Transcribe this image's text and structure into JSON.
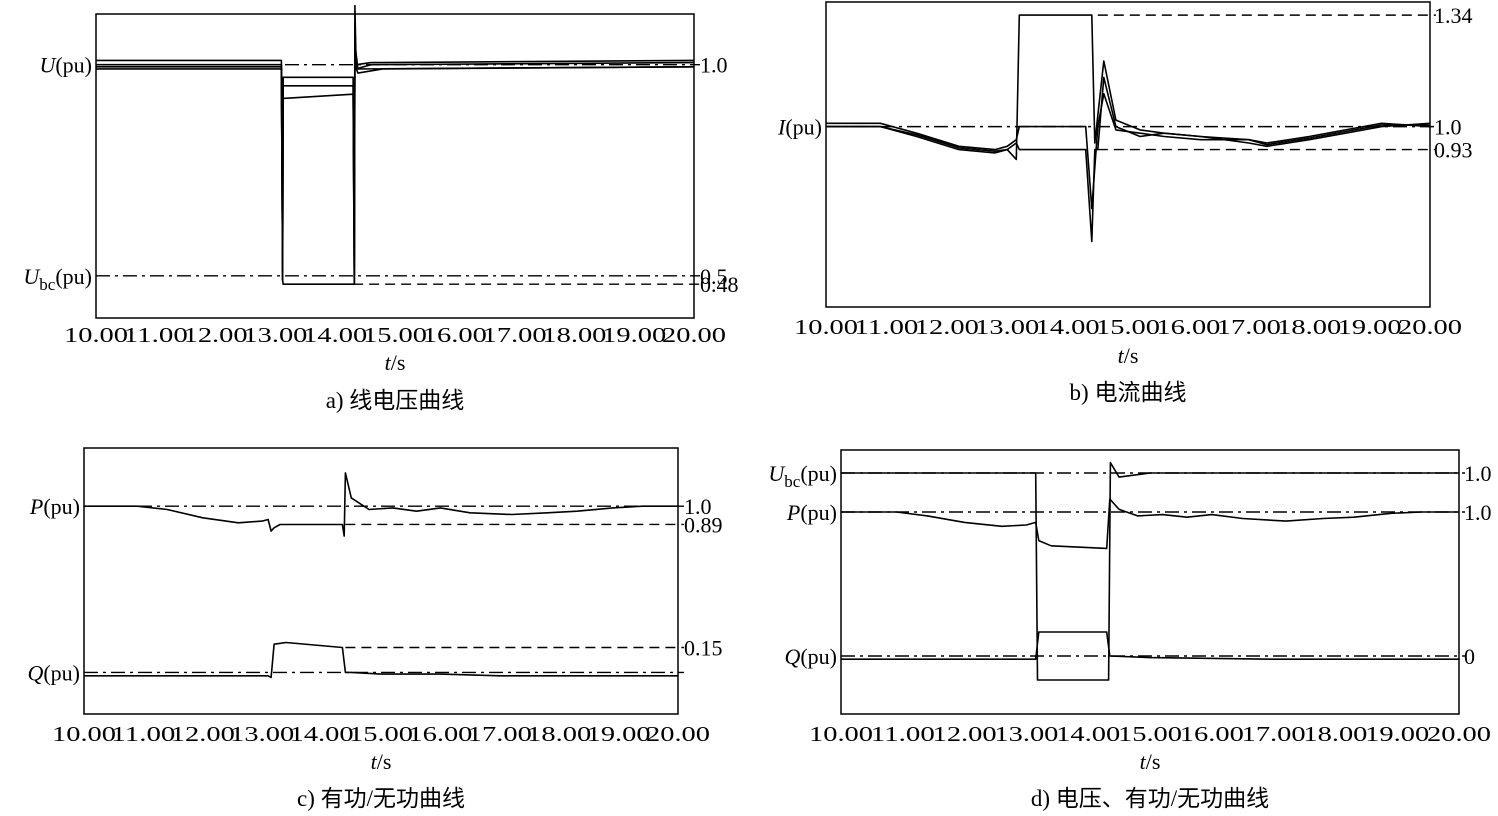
{
  "chart_data": [
    {
      "id": "a",
      "type": "line",
      "title": "a) 线电压曲线",
      "xlabel_var": "t",
      "xlabel_unit": "/s",
      "xlim": [
        10,
        20
      ],
      "x_ticks": [
        "10.00",
        "11.00",
        "12.00",
        "13.00",
        "14.00",
        "15.00",
        "16.00",
        "17.00",
        "18.00",
        "19.00",
        "20.00"
      ],
      "left_labels": [
        {
          "var": "U",
          "sub": "",
          "unit": "(pu)",
          "value": 1.0
        },
        {
          "var": "U",
          "sub": "bc",
          "unit": "(pu)",
          "value": 0.5
        }
      ],
      "right_labels": [
        {
          "text": "1.0",
          "value": 1.0
        },
        {
          "text": "0.5",
          "value": 0.5
        },
        {
          "text": "0.48",
          "value": 0.48
        }
      ],
      "ylim": [
        0.4,
        1.12
      ],
      "reference_lines": [
        {
          "value": 1.0,
          "style": "dashdot",
          "from": 10.0
        },
        {
          "value": 0.5,
          "style": "dashdot",
          "from": 10.0
        },
        {
          "value": 0.48,
          "style": "dashed",
          "from": 14.3
        }
      ],
      "series": [
        {
          "points": [
            [
              10,
              1.01
            ],
            [
              13.1,
              1.01
            ],
            [
              13.12,
              0.52
            ],
            [
              13.13,
              0.97
            ],
            [
              14.3,
              0.97
            ],
            [
              14.32,
              0.5
            ],
            [
              14.33,
              1.14
            ],
            [
              14.35,
              1.0
            ],
            [
              14.6,
              1.005
            ],
            [
              20,
              1.01
            ]
          ]
        },
        {
          "points": [
            [
              10,
              1.0
            ],
            [
              13.1,
              1.0
            ],
            [
              13.12,
              0.49
            ],
            [
              13.13,
              0.95
            ],
            [
              14.3,
              0.95
            ],
            [
              14.32,
              0.48
            ],
            [
              14.33,
              1.1
            ],
            [
              14.35,
              0.99
            ],
            [
              14.6,
              1.0
            ],
            [
              20,
              1.005
            ]
          ]
        },
        {
          "points": [
            [
              10,
              0.99
            ],
            [
              13.1,
              0.99
            ],
            [
              13.12,
              0.49
            ],
            [
              13.13,
              0.92
            ],
            [
              14.3,
              0.93
            ],
            [
              14.32,
              0.48
            ],
            [
              14.33,
              1.05
            ],
            [
              14.38,
              0.99
            ],
            [
              20,
              0.995
            ]
          ]
        },
        {
          "points": [
            [
              10,
              0.995
            ],
            [
              13.1,
              0.995
            ],
            [
              13.12,
              0.49
            ],
            [
              13.13,
              0.48
            ],
            [
              14.3,
              0.48
            ],
            [
              14.32,
              0.48
            ],
            [
              14.33,
              1.0
            ],
            [
              14.38,
              0.98
            ],
            [
              14.8,
              0.99
            ],
            [
              20,
              0.995
            ]
          ]
        }
      ]
    },
    {
      "id": "b",
      "type": "line",
      "title": "b) 电流曲线",
      "xlabel_var": "t",
      "xlabel_unit": "/s",
      "xlim": [
        10,
        20
      ],
      "x_ticks": [
        "10.00",
        "11.00",
        "12.00",
        "13.00",
        "14.00",
        "15.00",
        "16.00",
        "17.00",
        "18.00",
        "19.00",
        "20.00"
      ],
      "left_labels": [
        {
          "var": "I",
          "sub": "",
          "unit": "(pu)",
          "value": 1.0
        }
      ],
      "right_labels": [
        {
          "text": "1.34",
          "value": 1.34
        },
        {
          "text": "1.0",
          "value": 1.0
        },
        {
          "text": "0.93",
          "value": 0.93
        }
      ],
      "ylim": [
        0.45,
        1.38
      ],
      "reference_lines": [
        {
          "value": 1.34,
          "style": "dashed",
          "from": 14.5
        },
        {
          "value": 1.0,
          "style": "dashdot",
          "from": 10.0
        },
        {
          "value": 0.93,
          "style": "dashed",
          "from": 14.5
        }
      ],
      "series": [
        {
          "points": [
            [
              10,
              1.0
            ],
            [
              10.9,
              1.0
            ],
            [
              11.5,
              0.97
            ],
            [
              12.2,
              0.93
            ],
            [
              12.8,
              0.92
            ],
            [
              13.0,
              0.93
            ],
            [
              13.15,
              0.95
            ],
            [
              13.2,
              0.93
            ],
            [
              14.3,
              0.93
            ],
            [
              14.4,
              0.65
            ],
            [
              14.45,
              0.93
            ],
            [
              14.5,
              0.93
            ],
            [
              14.6,
              1.15
            ],
            [
              14.8,
              1.0
            ],
            [
              15.2,
              0.97
            ],
            [
              15.6,
              0.98
            ],
            [
              16.2,
              0.97
            ],
            [
              17.0,
              0.95
            ],
            [
              17.3,
              0.94
            ],
            [
              18.0,
              0.96
            ],
            [
              18.6,
              0.98
            ],
            [
              19.2,
              1.0
            ],
            [
              20,
              1.01
            ]
          ]
        },
        {
          "points": [
            [
              10,
              1.01
            ],
            [
              10.9,
              1.01
            ],
            [
              11.5,
              0.98
            ],
            [
              12.2,
              0.94
            ],
            [
              12.8,
              0.93
            ],
            [
              13.0,
              0.94
            ],
            [
              13.15,
              0.96
            ],
            [
              13.2,
              1.0
            ],
            [
              14.3,
              1.0
            ],
            [
              14.4,
              0.75
            ],
            [
              14.5,
              1.0
            ],
            [
              14.6,
              1.1
            ],
            [
              14.8,
              0.99
            ],
            [
              15.2,
              0.98
            ],
            [
              15.6,
              0.97
            ],
            [
              16.2,
              0.96
            ],
            [
              17.0,
              0.96
            ],
            [
              17.3,
              0.95
            ],
            [
              18.0,
              0.97
            ],
            [
              18.6,
              0.99
            ],
            [
              19.2,
              1.01
            ],
            [
              20,
              1.0
            ]
          ]
        },
        {
          "points": [
            [
              10,
              1.0
            ],
            [
              10.9,
              1.0
            ],
            [
              11.5,
              0.975
            ],
            [
              12.2,
              0.935
            ],
            [
              12.8,
              0.925
            ],
            [
              13.0,
              0.93
            ],
            [
              13.15,
              0.9
            ],
            [
              13.2,
              1.34
            ],
            [
              14.3,
              1.34
            ],
            [
              14.4,
              1.34
            ],
            [
              14.45,
              0.95
            ],
            [
              14.6,
              1.2
            ],
            [
              14.8,
              1.02
            ],
            [
              15.2,
              0.99
            ],
            [
              15.6,
              0.98
            ],
            [
              16.2,
              0.97
            ],
            [
              17.0,
              0.96
            ],
            [
              17.3,
              0.945
            ],
            [
              18.0,
              0.965
            ],
            [
              18.6,
              0.985
            ],
            [
              19.2,
              1.005
            ],
            [
              20,
              1.005
            ]
          ]
        }
      ]
    },
    {
      "id": "c",
      "type": "line",
      "title": "c) 有功/无功曲线",
      "xlabel_var": "t",
      "xlabel_unit": "/s",
      "xlim": [
        10,
        20
      ],
      "x_ticks": [
        "10.00",
        "11.00",
        "12.00",
        "13.00",
        "14.00",
        "15.00",
        "16.00",
        "17.00",
        "18.00",
        "19.00",
        "20.00"
      ],
      "left_labels": [
        {
          "var": "P",
          "sub": "",
          "unit": "(pu)",
          "value": 1.0
        },
        {
          "var": "Q",
          "sub": "",
          "unit": "(pu)",
          "value": 0.0
        }
      ],
      "right_labels": [
        {
          "text": "1.0",
          "value": 1.0
        },
        {
          "text": "0.89",
          "value": 0.89
        },
        {
          "text": "0.15",
          "value": 0.15
        }
      ],
      "ylim": [
        -0.25,
        1.35
      ],
      "reference_lines": [
        {
          "value": 1.0,
          "style": "dashdot",
          "from": 10.0
        },
        {
          "value": 0.89,
          "style": "dashed",
          "from": 14.4
        },
        {
          "value": 0.15,
          "style": "dashed",
          "from": 14.4
        },
        {
          "value": 0.0,
          "style": "dashdot",
          "from": 10.0
        }
      ],
      "series": [
        {
          "name": "P",
          "points": [
            [
              10,
              1.0
            ],
            [
              10.9,
              1.0
            ],
            [
              11.4,
              0.98
            ],
            [
              12.0,
              0.93
            ],
            [
              12.6,
              0.9
            ],
            [
              13.0,
              0.91
            ],
            [
              13.1,
              0.92
            ],
            [
              13.15,
              0.85
            ],
            [
              13.2,
              0.87
            ],
            [
              13.3,
              0.89
            ],
            [
              14.35,
              0.89
            ],
            [
              14.38,
              0.82
            ],
            [
              14.4,
              1.2
            ],
            [
              14.5,
              1.05
            ],
            [
              14.8,
              0.98
            ],
            [
              15.2,
              0.99
            ],
            [
              15.6,
              0.97
            ],
            [
              16.0,
              0.99
            ],
            [
              16.5,
              0.96
            ],
            [
              17.2,
              0.95
            ],
            [
              17.8,
              0.96
            ],
            [
              18.3,
              0.97
            ],
            [
              18.9,
              0.99
            ],
            [
              19.4,
              1.0
            ],
            [
              20,
              1.0
            ]
          ]
        },
        {
          "name": "Q",
          "points": [
            [
              10,
              -0.02
            ],
            [
              13.1,
              -0.02
            ],
            [
              13.15,
              -0.03
            ],
            [
              13.2,
              0.17
            ],
            [
              13.4,
              0.18
            ],
            [
              14.35,
              0.15
            ],
            [
              14.4,
              0.0
            ],
            [
              14.5,
              0.0
            ],
            [
              15.0,
              -0.01
            ],
            [
              16.0,
              -0.01
            ],
            [
              17.0,
              -0.02
            ],
            [
              18.0,
              -0.02
            ],
            [
              19.0,
              -0.02
            ],
            [
              20,
              -0.02
            ]
          ]
        }
      ]
    },
    {
      "id": "d",
      "type": "line",
      "title": "d) 电压、有功/无功曲线",
      "xlabel_var": "t",
      "xlabel_unit": "/s",
      "xlim": [
        10,
        20
      ],
      "x_ticks": [
        "10.00",
        "11.00",
        "12.00",
        "13.00",
        "14.00",
        "15.00",
        "16.00",
        "17.00",
        "18.00",
        "19.00",
        "20.00"
      ],
      "left_labels": [
        {
          "var": "U",
          "sub": "bc",
          "unit": "(pu)",
          "value": 1.0,
          "row": 0
        },
        {
          "var": "P",
          "sub": "",
          "unit": "(pu)",
          "value": 1.0,
          "row": 1
        },
        {
          "var": "Q",
          "sub": "",
          "unit": "(pu)",
          "value": 0.0,
          "row": 2
        }
      ],
      "right_labels": [
        {
          "text": "1.0",
          "row": 0
        },
        {
          "text": "1.0",
          "row": 1
        },
        {
          "text": "0",
          "row": 2
        }
      ],
      "series": [
        {
          "name": "Ubc",
          "points": [
            [
              10,
              1.0
            ],
            [
              13.15,
              1.0
            ],
            [
              13.18,
              0.0
            ],
            [
              14.33,
              0.0
            ],
            [
              14.36,
              1.05
            ],
            [
              14.5,
              0.98
            ],
            [
              15.0,
              1.0
            ],
            [
              20,
              1.0
            ]
          ]
        },
        {
          "name": "P",
          "points": [
            [
              10,
              1.0
            ],
            [
              10.9,
              1.0
            ],
            [
              11.4,
              0.97
            ],
            [
              12.0,
              0.92
            ],
            [
              12.6,
              0.89
            ],
            [
              13.0,
              0.9
            ],
            [
              13.15,
              0.92
            ],
            [
              13.2,
              0.78
            ],
            [
              13.4,
              0.74
            ],
            [
              14.3,
              0.72
            ],
            [
              14.35,
              1.1
            ],
            [
              14.5,
              1.02
            ],
            [
              14.8,
              0.97
            ],
            [
              15.2,
              0.98
            ],
            [
              15.6,
              0.96
            ],
            [
              16.0,
              0.98
            ],
            [
              16.5,
              0.95
            ],
            [
              17.2,
              0.93
            ],
            [
              17.8,
              0.95
            ],
            [
              18.3,
              0.96
            ],
            [
              18.9,
              0.99
            ],
            [
              19.4,
              1.0
            ],
            [
              20,
              1.0
            ]
          ]
        },
        {
          "name": "Q",
          "points": [
            [
              10,
              -0.02
            ],
            [
              13.15,
              -0.02
            ],
            [
              13.2,
              0.15
            ],
            [
              14.3,
              0.15
            ],
            [
              14.35,
              0.0
            ],
            [
              15.0,
              -0.01
            ],
            [
              17.0,
              -0.02
            ],
            [
              20,
              -0.02
            ]
          ]
        }
      ]
    }
  ]
}
